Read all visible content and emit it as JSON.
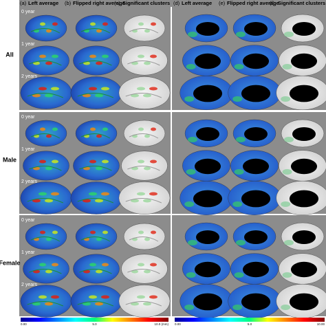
{
  "panel_headers": [
    {
      "letter": "(a)",
      "title": "Left average"
    },
    {
      "letter": "(b)",
      "title": "Flipped right average"
    },
    {
      "letter": "(c)",
      "title": "Significant clusters"
    },
    {
      "letter": "(d)",
      "title": "Left average"
    },
    {
      "letter": "(e)",
      "title": "Flipped right average"
    },
    {
      "letter": "(f)",
      "title": "Significant clusters"
    }
  ],
  "groups": [
    {
      "label": "All",
      "ages": [
        "0 year",
        "1 year",
        "2 years"
      ]
    },
    {
      "label": "Male",
      "ages": [
        "0 year",
        "1 year",
        "2 years"
      ]
    },
    {
      "label": "Female",
      "ages": [
        "0 year",
        "1 year",
        "2 years"
      ]
    }
  ],
  "colorbars": [
    {
      "ticks": [
        "0.00",
        "5.0",
        "10.0 (mm)"
      ]
    },
    {
      "ticks": [
        "0.00",
        "5.0",
        "10.00"
      ]
    }
  ]
}
